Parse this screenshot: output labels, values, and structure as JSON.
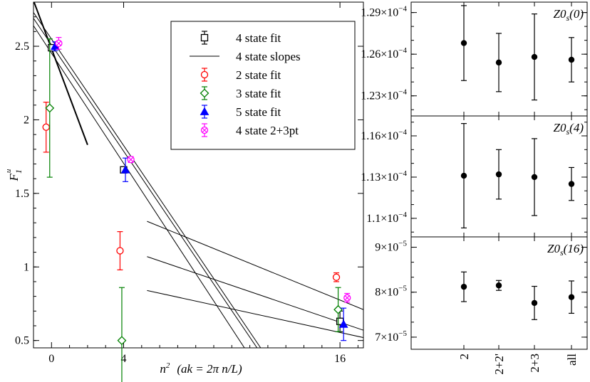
{
  "chart_data": [
    {
      "type": "scatter",
      "title": "",
      "xlabel": "n2 (ak = 2π n/L)",
      "xlabel_parts": {
        "n": "n",
        "sup": "2",
        "rest": "(ak = 2π n/L)"
      },
      "ylabel": "F1u",
      "ylabel_parts": {
        "main": "F",
        "sub": "1",
        "sup": "u"
      },
      "xlim": [
        -1,
        17.3
      ],
      "ylim": [
        0.45,
        2.8
      ],
      "xticks": [
        0,
        4,
        16
      ],
      "xtick_labels": [
        "0",
        "4",
        "16"
      ],
      "yticks": [
        0.5,
        1,
        1.5,
        2,
        2.5
      ],
      "ytick_labels": [
        "0.5",
        "1",
        "1.5",
        "2",
        "2.5"
      ],
      "legend_position": "top-right",
      "legend": [
        {
          "label": "4 state fit",
          "color": "#000000",
          "marker": "square"
        },
        {
          "label": "4 state slopes",
          "color": "#000000",
          "marker": "line"
        },
        {
          "label": "2 state fit",
          "color": "#ff0000",
          "marker": "circle"
        },
        {
          "label": "3 state fit",
          "color": "#008000",
          "marker": "diamond"
        },
        {
          "label": "5 state fit",
          "color": "#0000ff",
          "marker": "triangle"
        },
        {
          "label": "4 state 2+3pt",
          "color": "#ff00ff",
          "marker": "cross"
        }
      ],
      "series": [
        {
          "label": "4 state fit",
          "color": "#000000",
          "marker": "square",
          "points": [
            {
              "x": 0,
              "y": 2.49,
              "err": 0.02
            },
            {
              "x": 4,
              "y": 1.66,
              "err": 0.02
            },
            {
              "x": 16,
              "y": 0.63,
              "err": 0.07
            }
          ]
        },
        {
          "label": "2 state fit",
          "color": "#ff0000",
          "marker": "circle",
          "points": [
            {
              "x": -0.3,
              "y": 1.95,
              "err": 0.17
            },
            {
              "x": 3.8,
              "y": 1.11,
              "err": 0.13
            },
            {
              "x": 15.8,
              "y": 0.93,
              "err": 0.03
            }
          ]
        },
        {
          "label": "3 state fit",
          "color": "#008000",
          "marker": "diamond",
          "points": [
            {
              "x": -0.1,
              "y": 2.08,
              "err": 0.47
            },
            {
              "x": 3.9,
              "y": 0.5,
              "err": 0.36
            },
            {
              "x": 15.9,
              "y": 0.71,
              "err": 0.15
            }
          ]
        },
        {
          "label": "5 state fit",
          "color": "#0000ff",
          "marker": "triangle",
          "points": [
            {
              "x": 0.2,
              "y": 2.5,
              "err": 0.03
            },
            {
              "x": 4.1,
              "y": 1.66,
              "err": 0.08
            },
            {
              "x": 16.2,
              "y": 0.61,
              "err": 0.11
            }
          ]
        },
        {
          "label": "4 state 2+3pt",
          "color": "#ff00ff",
          "marker": "cross",
          "points": [
            {
              "x": 0.4,
              "y": 2.52,
              "err": 0.04
            },
            {
              "x": 4.4,
              "y": 1.73,
              "err": 0.02
            },
            {
              "x": 16.4,
              "y": 0.79,
              "err": 0.03
            }
          ]
        }
      ],
      "slopes": [
        {
          "x": [
            -1.0,
            2.0
          ],
          "y": [
            2.81,
            1.83
          ]
        },
        {
          "x": [
            -1.0,
            11.6
          ],
          "y": [
            2.73,
            0.45
          ]
        },
        {
          "x": [
            -1.0,
            11.4
          ],
          "y": [
            2.69,
            0.45
          ]
        },
        {
          "x": [
            -1.0,
            10.7
          ],
          "y": [
            2.64,
            0.45
          ]
        },
        {
          "x": [
            5.3,
            17.3
          ],
          "y": [
            1.31,
            0.71
          ]
        },
        {
          "x": [
            5.3,
            17.3
          ],
          "y": [
            1.07,
            0.57
          ]
        },
        {
          "x": [
            5.3,
            17.3
          ],
          "y": [
            0.84,
            0.52
          ]
        }
      ]
    },
    {
      "type": "scatter",
      "title": "Z0s(0)",
      "title_parts": {
        "main": "Z0",
        "sub": "s",
        "rest": "(0)"
      },
      "categories": [
        "2",
        "2+2'",
        "2+3",
        "all"
      ],
      "ylim": [
        0.00012155,
        0.00012975
      ],
      "yticks": [
        0.000123,
        0.000126,
        0.000129
      ],
      "ytick_labels": [
        {
          "mant": "1.23×10",
          "exp": "−4"
        },
        {
          "mant": "1.26×10",
          "exp": "−4"
        },
        {
          "mant": "1.29×10",
          "exp": "−4"
        }
      ],
      "points": [
        {
          "y": 0.0001268,
          "err": 2.7e-06
        },
        {
          "y": 0.0001254,
          "err": 2.1e-06
        },
        {
          "y": 0.0001258,
          "err": 3.1e-06
        },
        {
          "y": 0.0001256,
          "err": 1.6e-06
        }
      ]
    },
    {
      "type": "scatter",
      "title": "Z0s(4)",
      "title_parts": {
        "main": "Z0",
        "sub": "s",
        "rest": "(4)"
      },
      "categories": [
        "2",
        "2+2'",
        "2+3",
        "all"
      ],
      "ylim": [
        0.00010865,
        0.00011745
      ],
      "yticks": [
        0.00011,
        0.000113,
        0.000116
      ],
      "ytick_labels": [
        {
          "mant": "1.1×10",
          "exp": "−4"
        },
        {
          "mant": "1.13×10",
          "exp": "−4"
        },
        {
          "mant": "1.16×10",
          "exp": "−4"
        }
      ],
      "points": [
        {
          "y": 0.0001131,
          "err": 3.8e-06
        },
        {
          "y": 0.0001132,
          "err": 1.8e-06
        },
        {
          "y": 0.000113,
          "err": 2.8e-06
        },
        {
          "y": 0.0001125,
          "err": 1.2e-06
        }
      ]
    },
    {
      "type": "scatter",
      "title": "Z0s(16)",
      "title_parts": {
        "main": "Z0",
        "sub": "s",
        "rest": "(16)"
      },
      "categories": [
        "2",
        "2+2'",
        "2+3",
        "all"
      ],
      "ylim": [
        6.73e-05,
        9.23e-05
      ],
      "yticks": [
        7e-05,
        8e-05,
        9e-05
      ],
      "ytick_labels": [
        {
          "mant": "7×10",
          "exp": "−5"
        },
        {
          "mant": "8×10",
          "exp": "−5"
        },
        {
          "mant": "9×10",
          "exp": "−5"
        }
      ],
      "points": [
        {
          "y": 8.12e-05,
          "err": 3.3e-06
        },
        {
          "y": 8.15e-05,
          "err": 1.1e-06
        },
        {
          "y": 7.76e-05,
          "err": 3.7e-06
        },
        {
          "y": 7.89e-05,
          "err": 3.6e-06
        }
      ]
    }
  ]
}
